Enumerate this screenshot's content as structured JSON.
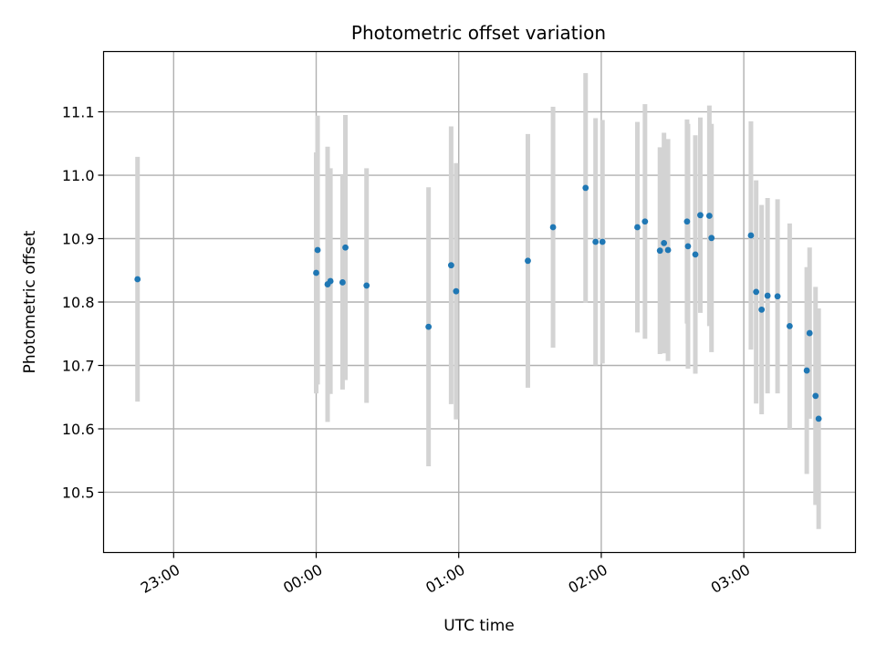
{
  "chart_data": {
    "type": "scatter",
    "title": "Photometric offset variation",
    "xlabel": "UTC time",
    "ylabel": "Photometric offset",
    "x_unit": "minutes relative to 00:00 UTC",
    "xlim": [
      -89.5,
      227
    ],
    "ylim": [
      10.405,
      11.195
    ],
    "grid": true,
    "xticks": [
      {
        "value": -60,
        "label": "23:00"
      },
      {
        "value": 0,
        "label": "00:00"
      },
      {
        "value": 60,
        "label": "01:00"
      },
      {
        "value": 120,
        "label": "02:00"
      },
      {
        "value": 180,
        "label": "03:00"
      }
    ],
    "yticks": [
      {
        "value": 10.5,
        "label": "10.5"
      },
      {
        "value": 10.6,
        "label": "10.6"
      },
      {
        "value": 10.7,
        "label": "10.7"
      },
      {
        "value": 10.8,
        "label": "10.8"
      },
      {
        "value": 10.9,
        "label": "10.9"
      },
      {
        "value": 11.0,
        "label": "11.0"
      },
      {
        "value": 11.1,
        "label": "11.1"
      }
    ],
    "colors": {
      "point": "#1f77b4",
      "errorbar": "#d3d3d3",
      "grid": "#b0b0b0"
    },
    "points": [
      {
        "x": -75.2,
        "y": 10.836,
        "err": 0.193
      },
      {
        "x": 0.0,
        "y": 10.846,
        "err": 0.19
      },
      {
        "x": 0.6,
        "y": 10.882,
        "err": 0.212
      },
      {
        "x": 4.8,
        "y": 10.828,
        "err": 0.217
      },
      {
        "x": 6.0,
        "y": 10.833,
        "err": 0.178
      },
      {
        "x": 11.1,
        "y": 10.831,
        "err": 0.169
      },
      {
        "x": 12.3,
        "y": 10.886,
        "err": 0.209
      },
      {
        "x": 21.2,
        "y": 10.826,
        "err": 0.185
      },
      {
        "x": 47.3,
        "y": 10.761,
        "err": 0.22
      },
      {
        "x": 56.8,
        "y": 10.858,
        "err": 0.219
      },
      {
        "x": 58.9,
        "y": 10.817,
        "err": 0.202
      },
      {
        "x": 89.1,
        "y": 10.865,
        "err": 0.2
      },
      {
        "x": 99.7,
        "y": 10.918,
        "err": 0.19
      },
      {
        "x": 113.4,
        "y": 10.98,
        "err": 0.181
      },
      {
        "x": 117.6,
        "y": 10.895,
        "err": 0.195
      },
      {
        "x": 120.5,
        "y": 10.895,
        "err": 0.192
      },
      {
        "x": 135.2,
        "y": 10.918,
        "err": 0.166
      },
      {
        "x": 138.4,
        "y": 10.927,
        "err": 0.185
      },
      {
        "x": 144.7,
        "y": 10.881,
        "err": 0.163
      },
      {
        "x": 146.4,
        "y": 10.893,
        "err": 0.174
      },
      {
        "x": 148.1,
        "y": 10.882,
        "err": 0.175
      },
      {
        "x": 156.1,
        "y": 10.927,
        "err": 0.161
      },
      {
        "x": 156.5,
        "y": 10.888,
        "err": 0.193
      },
      {
        "x": 159.6,
        "y": 10.875,
        "err": 0.188
      },
      {
        "x": 161.7,
        "y": 10.937,
        "err": 0.154
      },
      {
        "x": 165.5,
        "y": 10.936,
        "err": 0.174
      },
      {
        "x": 166.4,
        "y": 10.901,
        "err": 0.18
      },
      {
        "x": 183.0,
        "y": 10.905,
        "err": 0.18
      },
      {
        "x": 185.2,
        "y": 10.816,
        "err": 0.176
      },
      {
        "x": 187.5,
        "y": 10.788,
        "err": 0.165
      },
      {
        "x": 190.0,
        "y": 10.81,
        "err": 0.154
      },
      {
        "x": 194.2,
        "y": 10.809,
        "err": 0.153
      },
      {
        "x": 199.3,
        "y": 10.762,
        "err": 0.162
      },
      {
        "x": 206.5,
        "y": 10.692,
        "err": 0.163
      },
      {
        "x": 207.7,
        "y": 10.751,
        "err": 0.135
      },
      {
        "x": 210.2,
        "y": 10.652,
        "err": 0.172
      },
      {
        "x": 211.5,
        "y": 10.616,
        "err": 0.174
      }
    ]
  }
}
